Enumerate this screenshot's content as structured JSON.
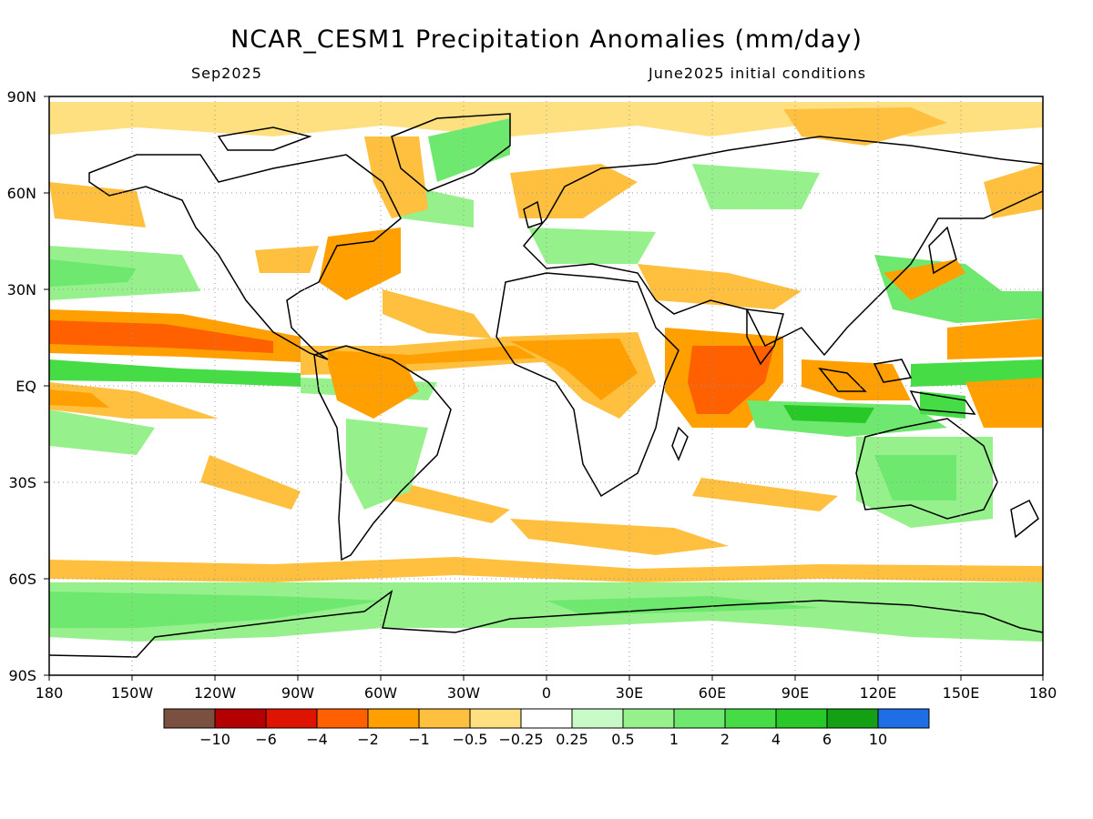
{
  "title": "NCAR_CESM1 Precipitation Anomalies (mm/day)",
  "valid_month": "Sep2025",
  "init_conditions": "June2025 initial conditions",
  "lat_labels": [
    "90N",
    "60N",
    "30N",
    "EQ",
    "30S",
    "60S",
    "90S"
  ],
  "lon_labels": [
    "180",
    "150W",
    "120W",
    "90W",
    "60W",
    "30W",
    "0",
    "30E",
    "60E",
    "90E",
    "120E",
    "150E",
    "180"
  ],
  "colorbar": {
    "colors": [
      "#7a5040",
      "#b40000",
      "#de1400",
      "#ff6000",
      "#ffa000",
      "#ffc040",
      "#ffe080",
      "#ffffff",
      "#c8fac8",
      "#96f08c",
      "#6ee86e",
      "#46dc46",
      "#28c828",
      "#14a014",
      "#1e6ee6"
    ],
    "labels": [
      "−10",
      "−6",
      "−4",
      "−2",
      "−1",
      "−0.5",
      "−0.25",
      "0.25",
      "0.5",
      "1",
      "2",
      "4",
      "6",
      "10"
    ]
  }
}
